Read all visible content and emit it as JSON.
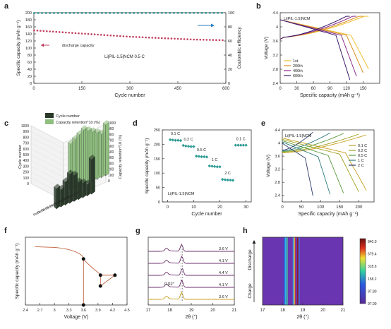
{
  "figure_type": "multi-panel scientific figure",
  "panels": {
    "a": "a",
    "b": "b",
    "c": "c",
    "d": "d",
    "e": "e",
    "f": "f",
    "g": "g",
    "h": "h"
  },
  "colors": {
    "capacity_markers": "#c04060",
    "efficiency_markers": "#1f8f8a",
    "axis": "#333333",
    "arrow_blue": "#2a7fc0",
    "rate_markers": "#2aa39a",
    "f_line": "#c0603a",
    "g_trace": "#6b2f6b",
    "g_bottom_trace": "#c8a020"
  },
  "chart_data": [
    {
      "panel": "a",
      "type": "scatter",
      "xlabel": "Cycle number",
      "ylabel": "Specific capacity (mAh g⁻¹)",
      "y2label": "Coulombic efficiency",
      "xlim": [
        0,
        600
      ],
      "xticks": [
        0,
        150,
        300,
        450,
        600
      ],
      "ylim": [
        0,
        200
      ],
      "yticks": [
        0,
        20,
        40,
        60,
        80,
        100,
        120,
        140,
        160,
        180,
        200
      ],
      "y2lim": [
        0,
        100
      ],
      "y2ticks": [
        0,
        20,
        40,
        60,
        80,
        100
      ],
      "annotation": "Li|PIL-1.5|NCM 0.5 C",
      "legend": "discharge capacity",
      "series": [
        {
          "name": "discharge capacity",
          "axis": "left",
          "x": [
            1,
            50,
            100,
            150,
            200,
            250,
            300,
            350,
            400,
            450,
            500,
            550,
            600
          ],
          "y": [
            150,
            147,
            144,
            141,
            138,
            135,
            132,
            130,
            128,
            126,
            124,
            123,
            122
          ]
        },
        {
          "axis": "right",
          "x": [
            1,
            100,
            200,
            300,
            400,
            500,
            600
          ],
          "y": [
            99.5,
            99.6,
            99.6,
            99.6,
            99.7,
            99.7,
            99.7
          ]
        }
      ]
    },
    {
      "panel": "b",
      "type": "line",
      "xlabel": "Specific capacity (mAh g⁻¹)",
      "ylabel": "Voltage (V)",
      "xlim": [
        0,
        180
      ],
      "xticks": [
        0,
        30,
        60,
        90,
        120,
        150
      ],
      "ylim": [
        2.4,
        4.4
      ],
      "yticks": [
        2.4,
        2.8,
        3.2,
        3.6,
        4.0,
        4.4
      ],
      "annotation": "Li|PIL-1.5|NCM",
      "series": [
        {
          "name": "1st",
          "color": "#f0c030",
          "charge_end": [
            160,
            4.3
          ],
          "discharge_end": [
            160,
            2.8
          ]
        },
        {
          "name": "200th",
          "color": "#d89020",
          "charge_end": [
            150,
            4.3
          ],
          "discharge_end": [
            150,
            2.7
          ]
        },
        {
          "name": "400th",
          "color": "#8a2a8a",
          "charge_end": [
            138,
            4.3
          ],
          "discharge_end": [
            138,
            2.6
          ]
        },
        {
          "name": "600th",
          "color": "#3a1a6a",
          "charge_end": [
            126,
            4.3
          ],
          "discharge_end": [
            126,
            2.5
          ]
        }
      ]
    },
    {
      "panel": "c",
      "type": "bar",
      "zlabel": "Cycle number",
      "z2label": "Capacity retention*10 (%)",
      "zticks": [
        0,
        100,
        200,
        300,
        400,
        500,
        600,
        700,
        800,
        900,
        1000
      ],
      "categories": [
        "Ref 1",
        "Ref 2",
        "Ref 3",
        "Ref 4",
        "Ref 5",
        "Ref 6",
        "Ref 7",
        "Ref 8",
        "This work"
      ],
      "series": [
        {
          "name": "Cycle number",
          "color": "#2a3a2a",
          "values": [
            350,
            300,
            400,
            500,
            450,
            300,
            250,
            200,
            600
          ]
        },
        {
          "name": "Capacity retention*10 (%)",
          "color": "#8fbf7f",
          "values": [
            800,
            850,
            900,
            950,
            900,
            850,
            800,
            750,
            880
          ]
        }
      ]
    },
    {
      "panel": "d",
      "type": "scatter",
      "xlabel": "Cycle number",
      "ylabel": "Specific capacity (mAh g⁻¹)",
      "xlim": [
        -2,
        32
      ],
      "xticks": [
        0,
        10,
        20,
        30
      ],
      "ylim": [
        0,
        250
      ],
      "yticks": [
        0,
        50,
        100,
        150,
        200,
        250
      ],
      "annotation": "Li|PIL-1.5|NCM",
      "segments": [
        {
          "label": "0.1 C",
          "x": [
            1,
            2,
            3,
            4,
            5
          ],
          "y": [
            216,
            215,
            214,
            214,
            213
          ]
        },
        {
          "label": "0.2 C",
          "x": [
            6,
            7,
            8,
            9,
            10
          ],
          "y": [
            196,
            194,
            193,
            192,
            192
          ]
        },
        {
          "label": "0.5 C",
          "x": [
            11,
            12,
            13,
            14,
            15
          ],
          "y": [
            159,
            158,
            157,
            157,
            156
          ]
        },
        {
          "label": "1 C",
          "x": [
            16,
            17,
            18,
            19,
            20
          ],
          "y": [
            125,
            124,
            123,
            122,
            122
          ]
        },
        {
          "label": "2 C",
          "x": [
            21,
            22,
            23,
            24,
            25
          ],
          "y": [
            78,
            77,
            76,
            76,
            75
          ]
        },
        {
          "label": "0.1 C",
          "x": [
            26,
            27,
            28,
            29,
            30
          ],
          "y": [
            197,
            197,
            197,
            197,
            197
          ]
        }
      ]
    },
    {
      "panel": "e",
      "type": "line",
      "xlabel": "Specific capacity (mAh g⁻¹)",
      "ylabel": "Voltage (V)",
      "xlim": [
        0,
        240
      ],
      "xticks": [
        0,
        50,
        100,
        150,
        200
      ],
      "ylim": [
        2.2,
        4.4
      ],
      "yticks": [
        2.4,
        2.8,
        3.2,
        3.6,
        4.0,
        4.4
      ],
      "annotation": "Li|PIL-1.5|NCM",
      "series": [
        {
          "name": "0.1 C",
          "color": "#c8a020",
          "capacity": 220
        },
        {
          "name": "0.2 C",
          "color": "#a0a020",
          "capacity": 200
        },
        {
          "name": "0.5 C",
          "color": "#5a9a3a",
          "capacity": 160
        },
        {
          "name": "1 C",
          "color": "#2a7a7a",
          "capacity": 125
        },
        {
          "name": "2 C",
          "color": "#2a3a6a",
          "capacity": 80
        }
      ]
    },
    {
      "panel": "f",
      "type": "line",
      "xlabel": "Voltage (V)",
      "ylabel": "Specific capacity (mAh g⁻¹)",
      "xlim": [
        2.4,
        4.5
      ],
      "xticks": [
        2.4,
        2.7,
        3.0,
        3.3,
        3.6,
        3.9,
        4.2,
        4.5
      ],
      "ylim": [
        0,
        500
      ],
      "points": [
        [
          3.6,
          0
        ],
        [
          3.6,
          340
        ],
        [
          3.95,
          140
        ],
        [
          3.95,
          220
        ],
        [
          4.25,
          220
        ]
      ]
    },
    {
      "panel": "g",
      "type": "line",
      "xlabel": "2θ (°)",
      "xlim": [
        17,
        21
      ],
      "xticks": [
        17,
        18,
        19,
        20,
        21
      ],
      "annotation": "0.02°",
      "labels": [
        "3.6 V",
        "4.1 V",
        "4.4 V",
        "4.1 V",
        "3.6 V"
      ],
      "peak_positions": [
        18.55,
        18.56,
        18.58,
        18.56,
        18.55
      ]
    },
    {
      "panel": "h",
      "type": "heatmap",
      "xlabel": "2θ (°)",
      "xlim": [
        17,
        21
      ],
      "xticks": [
        17,
        18,
        19,
        20,
        21
      ],
      "ylabels": [
        "Charge",
        "Discharge"
      ],
      "colorbar": [
        "840.0",
        "679.4",
        "318.6",
        "158.2",
        "97.80",
        "97.00"
      ],
      "stripe_positions": [
        18.1,
        18.55,
        18.75
      ]
    }
  ]
}
